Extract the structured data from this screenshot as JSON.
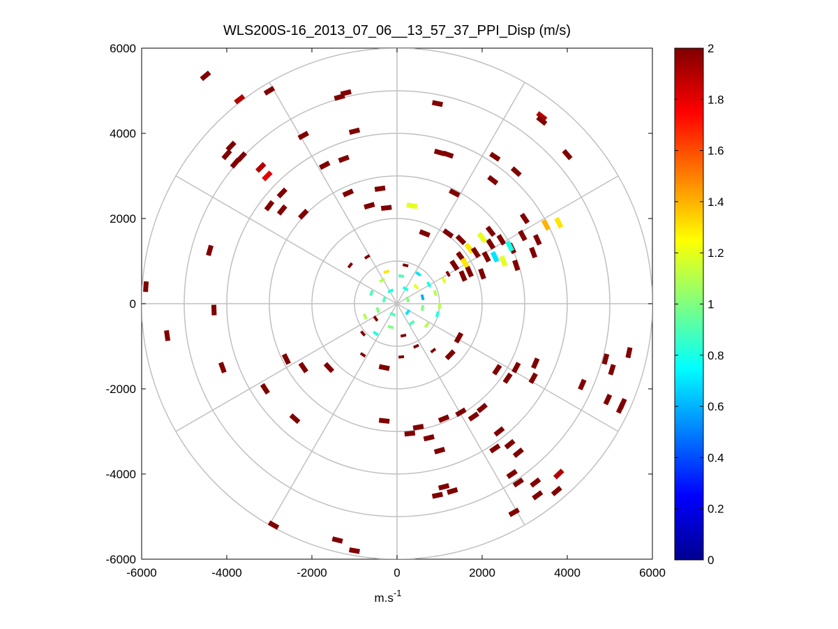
{
  "chart_data": {
    "type": "polar-scatter",
    "title": "WLS200S-16_2013_07_06__13_57_37_PPI_Disp (m/s)",
    "xlabel": "m.s",
    "xlabel_superscript": "-1",
    "ylabel": "",
    "xlim": [
      -6000,
      6000
    ],
    "ylim": [
      -6000,
      6000
    ],
    "xticks": [
      "-6000",
      "-4000",
      "-2000",
      "0",
      "2000",
      "4000",
      "6000"
    ],
    "yticks": [
      "6000",
      "4000",
      "2000",
      "0",
      "-2000",
      "-4000",
      "-6000"
    ],
    "polar_rings_m": [
      1000,
      2000,
      3000,
      4000,
      5000,
      6000
    ],
    "polar_spokes_deg": [
      0,
      30,
      60,
      90,
      120,
      150,
      180,
      210,
      240,
      270,
      300,
      330
    ],
    "colorbar": {
      "colormap": "jet",
      "range": [
        0,
        2
      ],
      "ticks": [
        "0",
        "0.2",
        "0.4",
        "0.6",
        "0.8",
        "1",
        "1.2",
        "1.4",
        "1.6",
        "1.8",
        "2"
      ]
    },
    "points": [
      [
        -4500,
        5350,
        2
      ],
      [
        -3700,
        4800,
        1.9
      ],
      [
        -3000,
        5000,
        2
      ],
      [
        -1200,
        4950,
        2
      ],
      [
        -1350,
        4850,
        2
      ],
      [
        -1000,
        4050,
        2
      ],
      [
        -2200,
        3950,
        2
      ],
      [
        -3900,
        3700,
        2
      ],
      [
        -4000,
        3500,
        2
      ],
      [
        -3650,
        3450,
        2
      ],
      [
        -3800,
        3300,
        2
      ],
      [
        -3200,
        3200,
        1.9
      ],
      [
        -3050,
        3000,
        1.8
      ],
      [
        -1700,
        3250,
        2
      ],
      [
        -1250,
        3400,
        2
      ],
      [
        -2700,
        2600,
        2
      ],
      [
        -3000,
        2300,
        2
      ],
      [
        -2700,
        2200,
        2
      ],
      [
        -2200,
        2100,
        2
      ],
      [
        -1150,
        2600,
        2
      ],
      [
        -650,
        2300,
        2
      ],
      [
        -400,
        2700,
        2
      ],
      [
        -250,
        2250,
        2
      ],
      [
        -4400,
        1250,
        2
      ],
      [
        -5900,
        400,
        2
      ],
      [
        -4300,
        -150,
        2
      ],
      [
        -5400,
        -750,
        2
      ],
      [
        -4100,
        -1500,
        2
      ],
      [
        -2600,
        -1300,
        2
      ],
      [
        -2200,
        -1500,
        2
      ],
      [
        -3100,
        -2000,
        2
      ],
      [
        -2400,
        -2700,
        2
      ],
      [
        -300,
        -2750,
        2
      ],
      [
        -2900,
        -5200,
        2
      ],
      [
        -1400,
        -5550,
        2
      ],
      [
        -1000,
        -5800,
        2
      ],
      [
        -800,
        -700,
        2
      ],
      [
        -800,
        -1200,
        2
      ],
      [
        -300,
        -1500,
        2
      ],
      [
        -1600,
        -1500,
        2
      ],
      [
        500,
        -2900,
        2
      ],
      [
        300,
        -3050,
        2
      ],
      [
        750,
        -3150,
        2
      ],
      [
        1000,
        -3450,
        2
      ],
      [
        1100,
        -2700,
        2
      ],
      [
        1500,
        -2550,
        2
      ],
      [
        1800,
        -2650,
        2
      ],
      [
        2000,
        -2450,
        2
      ],
      [
        2400,
        -3000,
        2
      ],
      [
        2650,
        -3300,
        2
      ],
      [
        2850,
        -3500,
        2
      ],
      [
        2300,
        -3400,
        2
      ],
      [
        2700,
        -4000,
        2
      ],
      [
        2850,
        -4200,
        2
      ],
      [
        3250,
        -4200,
        2
      ],
      [
        3300,
        -4500,
        2
      ],
      [
        3750,
        -4400,
        2
      ],
      [
        3800,
        -4000,
        1.9
      ],
      [
        1300,
        -4400,
        2
      ],
      [
        950,
        -4500,
        2
      ],
      [
        1100,
        -4300,
        2
      ],
      [
        2750,
        -4900,
        2
      ],
      [
        3200,
        -1750,
        2
      ],
      [
        2800,
        -1500,
        2
      ],
      [
        2350,
        -1550,
        2
      ],
      [
        2600,
        -1750,
        2
      ],
      [
        3250,
        -1400,
        2
      ],
      [
        4350,
        -1900,
        2
      ],
      [
        4900,
        -1300,
        2
      ],
      [
        5050,
        -1550,
        2
      ],
      [
        5450,
        -1150,
        2
      ],
      [
        4950,
        -2250,
        2
      ],
      [
        5300,
        -2350,
        2
      ],
      [
        5250,
        -2450,
        2
      ],
      [
        3400,
        4400,
        1.9
      ],
      [
        3400,
        4300,
        2
      ],
      [
        4000,
        3500,
        2
      ],
      [
        2300,
        3450,
        2
      ],
      [
        2800,
        3100,
        2
      ],
      [
        2250,
        2900,
        2
      ],
      [
        1000,
        3550,
        2
      ],
      [
        1200,
        3500,
        2
      ],
      [
        1350,
        2600,
        2
      ],
      [
        950,
        4700,
        2
      ],
      [
        3000,
        2000,
        2
      ],
      [
        3500,
        1850,
        1.4
      ],
      [
        3800,
        1900,
        1.3
      ],
      [
        3300,
        1500,
        2
      ],
      [
        2950,
        1600,
        2
      ],
      [
        3200,
        1200,
        2
      ],
      [
        2700,
        1300,
        2
      ],
      [
        2450,
        1500,
        2
      ],
      [
        2200,
        1700,
        2
      ],
      [
        2200,
        1400,
        2
      ],
      [
        2000,
        1550,
        1.2
      ],
      [
        1700,
        1300,
        1.3
      ],
      [
        1850,
        1200,
        2
      ],
      [
        2100,
        1100,
        2
      ],
      [
        2500,
        1000,
        1.2
      ],
      [
        2800,
        900,
        2
      ],
      [
        1500,
        1100,
        2
      ],
      [
        1350,
        900,
        2
      ],
      [
        1200,
        700,
        2
      ],
      [
        1100,
        550,
        1.2
      ],
      [
        2000,
        700,
        2
      ],
      [
        2300,
        1100,
        0.7
      ],
      [
        2650,
        1350,
        0.8
      ],
      [
        1500,
        1500,
        2
      ],
      [
        1600,
        950,
        1.3
      ],
      [
        1200,
        1650,
        2
      ],
      [
        1700,
        750,
        2
      ],
      [
        1550,
        650,
        2
      ],
      [
        350,
        2300,
        1.2
      ],
      [
        650,
        1650,
        2
      ],
      [
        200,
        900,
        2
      ],
      [
        -700,
        1100,
        2
      ],
      [
        -1100,
        900,
        2
      ],
      [
        -500,
        -350,
        2
      ],
      [
        100,
        -1250,
        2
      ],
      [
        450,
        -1000,
        2
      ],
      [
        850,
        -1100,
        2
      ],
      [
        1250,
        -1200,
        2
      ],
      [
        1450,
        -800,
        2
      ],
      [
        -150,
        300,
        0.8
      ],
      [
        200,
        350,
        0.8
      ],
      [
        -300,
        100,
        0.9
      ],
      [
        250,
        -200,
        0.7
      ],
      [
        600,
        -100,
        1
      ],
      [
        -450,
        -150,
        1
      ],
      [
        100,
        650,
        0.9
      ],
      [
        -350,
        550,
        1.1
      ],
      [
        750,
        450,
        0.8
      ],
      [
        900,
        250,
        1.1
      ],
      [
        500,
        700,
        0.7
      ],
      [
        -600,
        250,
        0.9
      ],
      [
        350,
        -450,
        0.9
      ],
      [
        -150,
        -550,
        1
      ],
      [
        700,
        -500,
        1.1
      ],
      [
        -500,
        -700,
        0.8
      ],
      [
        150,
        -750,
        2
      ],
      [
        950,
        -250,
        0.8
      ],
      [
        -250,
        750,
        1.3
      ],
      [
        600,
        150,
        0.6
      ],
      [
        -100,
        -250,
        0.9
      ],
      [
        250,
        100,
        1
      ],
      [
        450,
        400,
        1.2
      ],
      [
        -750,
        -300,
        1.1
      ],
      [
        1000,
        -50,
        1.1
      ]
    ]
  }
}
